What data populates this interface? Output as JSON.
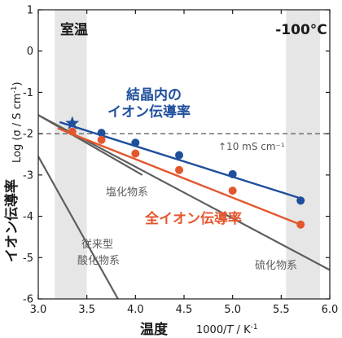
{
  "chart_data": {
    "type": "line",
    "title": "",
    "xlabel_main": "温度",
    "xlabel_unit": "1000/T / K⁻¹",
    "ylabel_main": "イオン伝導率",
    "ylabel_unit": "Log (σ / S cm⁻¹)",
    "xlim": [
      3.0,
      6.0
    ],
    "ylim": [
      -6,
      1
    ],
    "xticks": [
      "3.0",
      "3.5",
      "4.0",
      "4.5",
      "5.0",
      "5.5",
      "6.0"
    ],
    "yticks": [
      "1",
      "0",
      "-1",
      "-2",
      "-3",
      "-4",
      "-5",
      "-6"
    ],
    "bands": [
      {
        "x": [
          3.17,
          3.5
        ],
        "label": "室温"
      },
      {
        "x": [
          5.55,
          5.9
        ],
        "label": "-100°C"
      }
    ],
    "reference_line": {
      "y": -2,
      "label": "↑10 mS cm⁻¹"
    },
    "series": [
      {
        "name": "結晶内のイオン伝導率",
        "color": "#1f4e9c",
        "x": [
          3.35,
          3.65,
          4.0,
          4.45,
          5.0,
          5.7
        ],
        "y": [
          -1.75,
          -1.98,
          -2.22,
          -2.52,
          -2.98,
          -3.62
        ],
        "fit": [
          [
            3.22,
            -1.72
          ],
          [
            5.72,
            -3.58
          ]
        ]
      },
      {
        "name": "全イオン伝導率",
        "color": "#e4572e",
        "x": [
          3.35,
          3.65,
          4.0,
          4.45,
          5.0,
          5.7
        ],
        "y": [
          -1.95,
          -2.15,
          -2.48,
          -2.88,
          -3.38,
          -4.2
        ],
        "fit": [
          [
            3.2,
            -1.87
          ],
          [
            5.72,
            -4.22
          ]
        ]
      }
    ],
    "reference_lines": [
      {
        "name": "硫化物系",
        "color": "#5e5e5e",
        "points": [
          [
            3.0,
            -1.55
          ],
          [
            6.0,
            -5.3
          ]
        ]
      },
      {
        "name": "塩化物系",
        "color": "#5e5e5e",
        "points": [
          [
            3.0,
            -1.55
          ],
          [
            4.07,
            -3.0
          ]
        ]
      },
      {
        "name": "従来型酸化物系",
        "color": "#5e5e5e",
        "points": [
          [
            3.0,
            -2.55
          ],
          [
            3.82,
            -6.0
          ]
        ]
      }
    ],
    "highlight_point": {
      "x": 3.35,
      "y": -1.75,
      "color": "#1f4e9c"
    }
  }
}
